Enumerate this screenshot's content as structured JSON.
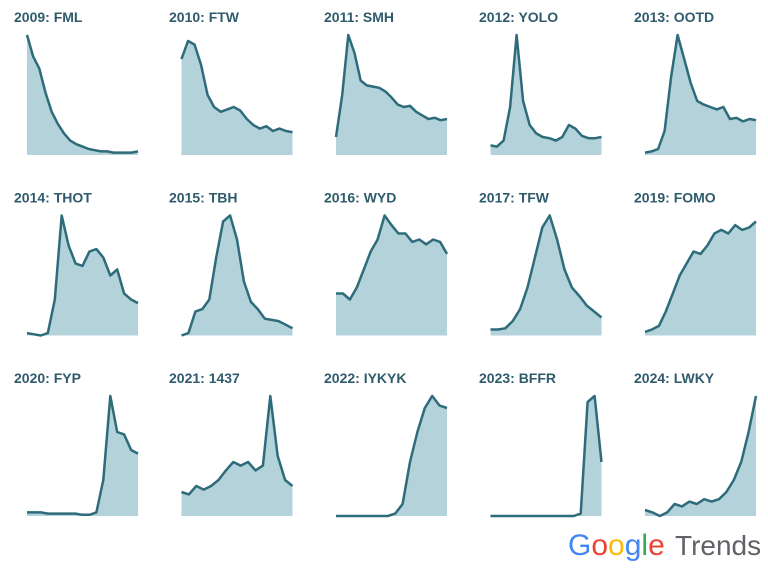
{
  "chart_data": [
    {
      "type": "area",
      "title": "2009: FML",
      "values": [
        100,
        82,
        72,
        52,
        36,
        26,
        18,
        12,
        9,
        7,
        5,
        4,
        3,
        3,
        2,
        2,
        2,
        2,
        3
      ],
      "ylim": [
        0,
        100
      ]
    },
    {
      "type": "area",
      "title": "2010: FTW",
      "values": [
        80,
        95,
        92,
        75,
        50,
        40,
        36,
        38,
        40,
        37,
        30,
        25,
        22,
        24,
        20,
        22,
        20,
        19
      ],
      "ylim": [
        0,
        100
      ]
    },
    {
      "type": "area",
      "title": "2011: SMH",
      "values": [
        15,
        50,
        100,
        85,
        62,
        58,
        57,
        56,
        53,
        48,
        42,
        40,
        41,
        36,
        33,
        30,
        31,
        29,
        30
      ],
      "ylim": [
        0,
        100
      ]
    },
    {
      "type": "area",
      "title": "2012: YOLO",
      "values": [
        8,
        7,
        12,
        40,
        100,
        45,
        25,
        18,
        15,
        14,
        12,
        15,
        25,
        22,
        16,
        14,
        14,
        15
      ],
      "ylim": [
        0,
        100
      ]
    },
    {
      "type": "area",
      "title": "2013: OOTD",
      "values": [
        2,
        3,
        5,
        20,
        65,
        100,
        80,
        60,
        45,
        42,
        40,
        38,
        40,
        30,
        31,
        28,
        30,
        29
      ],
      "ylim": [
        0,
        100
      ]
    },
    {
      "type": "area",
      "title": "2014: THOT",
      "values": [
        2,
        1,
        0,
        2,
        30,
        100,
        75,
        60,
        58,
        70,
        72,
        65,
        50,
        55,
        35,
        30,
        27
      ],
      "ylim": [
        0,
        100
      ]
    },
    {
      "type": "area",
      "title": "2015: TBH",
      "values": [
        0,
        2,
        20,
        22,
        30,
        65,
        95,
        100,
        80,
        45,
        28,
        22,
        14,
        13,
        12,
        9,
        6
      ],
      "ylim": [
        0,
        100
      ]
    },
    {
      "type": "area",
      "title": "2016: WYD",
      "values": [
        35,
        35,
        30,
        40,
        55,
        70,
        80,
        100,
        92,
        85,
        85,
        78,
        80,
        76,
        80,
        78,
        68
      ],
      "ylim": [
        0,
        100
      ]
    },
    {
      "type": "area",
      "title": "2017: TFW",
      "values": [
        5,
        5,
        6,
        12,
        22,
        40,
        65,
        90,
        100,
        80,
        55,
        40,
        33,
        25,
        20,
        15
      ],
      "ylim": [
        0,
        100
      ]
    },
    {
      "type": "area",
      "title": "2019: FOMO",
      "values": [
        3,
        5,
        8,
        20,
        35,
        50,
        60,
        70,
        68,
        75,
        85,
        88,
        85,
        92,
        88,
        90,
        95
      ],
      "ylim": [
        0,
        100
      ]
    },
    {
      "type": "area",
      "title": "2020: FYP",
      "values": [
        3,
        3,
        3,
        2,
        2,
        2,
        2,
        2,
        1,
        1,
        3,
        30,
        100,
        70,
        68,
        55,
        52
      ],
      "ylim": [
        0,
        100
      ]
    },
    {
      "type": "area",
      "title": "2021: 1437",
      "values": [
        20,
        18,
        25,
        22,
        25,
        30,
        38,
        45,
        42,
        45,
        38,
        42,
        100,
        50,
        30,
        25
      ],
      "ylim": [
        0,
        100
      ]
    },
    {
      "type": "area",
      "title": "2022: IYKYK",
      "values": [
        0,
        0,
        0,
        0,
        0,
        0,
        0,
        0,
        2,
        10,
        45,
        70,
        90,
        100,
        92,
        90
      ],
      "ylim": [
        0,
        100
      ]
    },
    {
      "type": "area",
      "title": "2023: BFFR",
      "values": [
        0,
        0,
        0,
        0,
        0,
        0,
        0,
        0,
        0,
        0,
        0,
        0,
        0,
        2,
        95,
        100,
        45
      ],
      "ylim": [
        0,
        100
      ]
    },
    {
      "type": "area",
      "title": "2024: LWKY",
      "values": [
        5,
        3,
        0,
        3,
        10,
        8,
        12,
        10,
        14,
        12,
        14,
        20,
        30,
        45,
        70,
        100
      ],
      "ylim": [
        0,
        100
      ]
    }
  ],
  "logo": {
    "brand": "Google",
    "product": "Trends",
    "brand_colors": [
      "#4285f4",
      "#ea4335",
      "#fbbc05",
      "#4285f4",
      "#34a853",
      "#ea4335"
    ]
  }
}
